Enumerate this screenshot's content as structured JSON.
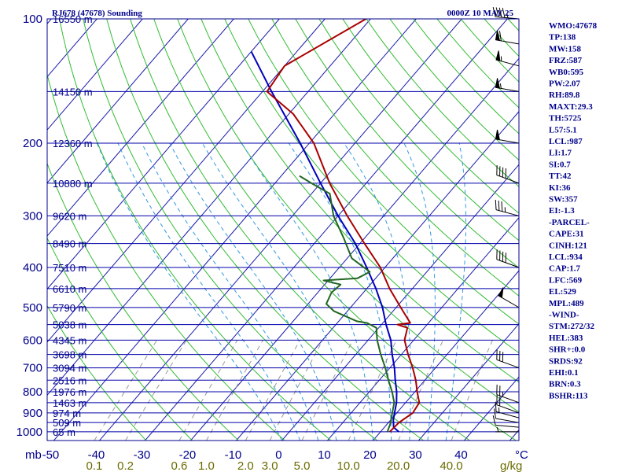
{
  "header": {
    "station_title": "RJ678 (47678) Sounding",
    "time_title": "0000Z 10 MAY 25"
  },
  "chart_data": {
    "type": "skew-t",
    "pressure_ticks": [
      "100",
      "200",
      "300",
      "400",
      "500",
      "600",
      "700",
      "800",
      "900",
      "1000"
    ],
    "pressure_tick_values": [
      100,
      200,
      300,
      400,
      500,
      600,
      700,
      800,
      900,
      1000
    ],
    "height_labels": [
      {
        "p": 100,
        "text": "16550 m"
      },
      {
        "p": 150,
        "text": "14150 m"
      },
      {
        "p": 200,
        "text": "12360 m"
      },
      {
        "p": 250,
        "text": "10880 m"
      },
      {
        "p": 300,
        "text": "9620 m"
      },
      {
        "p": 350,
        "text": "8490 m"
      },
      {
        "p": 400,
        "text": "7510 m"
      },
      {
        "p": 450,
        "text": "6610 m"
      },
      {
        "p": 500,
        "text": "5790 m"
      },
      {
        "p": 550,
        "text": "5038 m"
      },
      {
        "p": 600,
        "text": "4345 m"
      },
      {
        "p": 650,
        "text": "3698 m"
      },
      {
        "p": 700,
        "text": "3094 m"
      },
      {
        "p": 750,
        "text": "2516 m"
      },
      {
        "p": 800,
        "text": "1976 m"
      },
      {
        "p": 850,
        "text": "1463 m"
      },
      {
        "p": 900,
        "text": "974 m"
      },
      {
        "p": 950,
        "text": "509 m"
      },
      {
        "p": 1000,
        "text": "65 m"
      }
    ],
    "x_unit_label": "mb",
    "temp_ticks": [
      "-50",
      "-40",
      "-30",
      "-20",
      "-10",
      "0",
      "10",
      "20",
      "30",
      "40"
    ],
    "temp_tick_values": [
      -50,
      -40,
      -30,
      -20,
      -10,
      0,
      10,
      20,
      30,
      40
    ],
    "temp_unit_label": "°C",
    "mixing_ratio_ticks": [
      "0.1",
      "0.2",
      "0.6",
      "1.0",
      "2.0",
      "3.0",
      "5.0",
      "10.0",
      "20.0",
      "40.0"
    ],
    "mixing_ratio_unit_label": "g/kg",
    "temperature_profile": [
      {
        "p": 1000,
        "t": 22
      },
      {
        "p": 950,
        "t": 22.3
      },
      {
        "p": 900,
        "t": 23.5
      },
      {
        "p": 850,
        "t": 23
      },
      {
        "p": 800,
        "t": 20.5
      },
      {
        "p": 750,
        "t": 18
      },
      {
        "p": 700,
        "t": 15
      },
      {
        "p": 650,
        "t": 11.5
      },
      {
        "p": 600,
        "t": 8
      },
      {
        "p": 560,
        "t": 6.3
      },
      {
        "p": 550,
        "t": 3.5
      },
      {
        "p": 545,
        "t": 6
      },
      {
        "p": 500,
        "t": 1
      },
      {
        "p": 450,
        "t": -5
      },
      {
        "p": 400,
        "t": -11
      },
      {
        "p": 350,
        "t": -19
      },
      {
        "p": 300,
        "t": -28
      },
      {
        "p": 250,
        "t": -38
      },
      {
        "p": 200,
        "t": -49
      },
      {
        "p": 170,
        "t": -59
      },
      {
        "p": 150,
        "t": -69
      },
      {
        "p": 130,
        "t": -70
      },
      {
        "p": 100,
        "t": -61
      }
    ],
    "dewpoint_profile": [
      {
        "p": 1000,
        "t": 21.5
      },
      {
        "p": 950,
        "t": 20.5
      },
      {
        "p": 900,
        "t": 19
      },
      {
        "p": 850,
        "t": 17.5
      },
      {
        "p": 800,
        "t": 15
      },
      {
        "p": 750,
        "t": 12
      },
      {
        "p": 700,
        "t": 9
      },
      {
        "p": 650,
        "t": 5.5
      },
      {
        "p": 600,
        "t": 2
      },
      {
        "p": 560,
        "t": -0.5
      },
      {
        "p": 545,
        "t": -3.5
      },
      {
        "p": 540,
        "t": -6
      },
      {
        "p": 510,
        "t": -13
      },
      {
        "p": 490,
        "t": -16
      },
      {
        "p": 460,
        "t": -17
      },
      {
        "p": 440,
        "t": -16.5
      },
      {
        "p": 430,
        "t": -21
      },
      {
        "p": 425,
        "t": -14
      },
      {
        "p": 410,
        "t": -12.5
      },
      {
        "p": 380,
        "t": -19
      },
      {
        "p": 340,
        "t": -24.5
      },
      {
        "p": 300,
        "t": -31
      },
      {
        "p": 265,
        "t": -36
      },
      {
        "p": 250,
        "t": -42
      },
      {
        "p": 240,
        "t": -46
      }
    ],
    "parcel_profile": [
      {
        "p": 1000,
        "t": 24
      },
      {
        "p": 975,
        "t": 22
      },
      {
        "p": 934,
        "t": 20.5
      },
      {
        "p": 900,
        "t": 19.5
      },
      {
        "p": 850,
        "t": 18
      },
      {
        "p": 800,
        "t": 16
      },
      {
        "p": 750,
        "t": 13.5
      },
      {
        "p": 700,
        "t": 11
      },
      {
        "p": 650,
        "t": 8
      },
      {
        "p": 600,
        "t": 5
      },
      {
        "p": 550,
        "t": 1
      },
      {
        "p": 500,
        "t": -3
      },
      {
        "p": 450,
        "t": -8
      },
      {
        "p": 400,
        "t": -14
      },
      {
        "p": 350,
        "t": -21
      },
      {
        "p": 300,
        "t": -30
      },
      {
        "p": 250,
        "t": -40
      },
      {
        "p": 200,
        "t": -52
      },
      {
        "p": 150,
        "t": -68
      },
      {
        "p": 120,
        "t": -80
      }
    ],
    "winds": [
      {
        "p": 1000,
        "dir": 270,
        "spd": 5
      },
      {
        "p": 975,
        "dir": 275,
        "spd": 10
      },
      {
        "p": 950,
        "dir": 280,
        "spd": 10
      },
      {
        "p": 925,
        "dir": 285,
        "spd": 15
      },
      {
        "p": 900,
        "dir": 290,
        "spd": 20
      },
      {
        "p": 850,
        "dir": 290,
        "spd": 25
      },
      {
        "p": 700,
        "dir": 290,
        "spd": 30
      },
      {
        "p": 500,
        "dir": 300,
        "spd": 50
      },
      {
        "p": 400,
        "dir": 290,
        "spd": 40
      },
      {
        "p": 300,
        "dir": 285,
        "spd": 35
      },
      {
        "p": 250,
        "dir": 290,
        "spd": 40
      },
      {
        "p": 200,
        "dir": 280,
        "spd": 50
      },
      {
        "p": 150,
        "dir": 280,
        "spd": 55
      },
      {
        "p": 130,
        "dir": 285,
        "spd": 55
      },
      {
        "p": 115,
        "dir": 280,
        "spd": 60
      },
      {
        "p": 100,
        "dir": 275,
        "spd": 45
      }
    ]
  },
  "indices": [
    "WMO:47678",
    "TP:138",
    "MW:158",
    "FRZ:587",
    "WB0:595",
    "PW:2.07",
    "RH:89.8",
    "MAXT:29.3",
    "TH:5725",
    "L57:5.1",
    "LCL:987",
    "LI:1.7",
    "SI:0.7",
    "TT:42",
    "KI:36",
    "SW:357",
    "EI:-1.3",
    "-PARCEL-",
    "CAPE:31",
    "CINH:121",
    "LCL:934",
    "CAP:1.7",
    "LFC:569",
    "EL:529",
    "MPL:489",
    "-WIND-",
    "STM:272/32",
    "HEL:383",
    "SHR+:0.0",
    "SRDS:92",
    "EHI:0.1",
    "BRN:0.3",
    "BSHR:113"
  ],
  "colors": {
    "isobar": "#0000aa",
    "isotherm": "#1a1aaa",
    "dry_adiabat": "#33bb33",
    "moist_adiabat": "#3399dd",
    "mixing_ratio": "#999999",
    "temperature": "#aa0000",
    "dewpoint": "#226622",
    "parcel": "#0000bb",
    "label": "#00008b",
    "mixing_label": "#6b6b00",
    "barb": "#000000"
  }
}
